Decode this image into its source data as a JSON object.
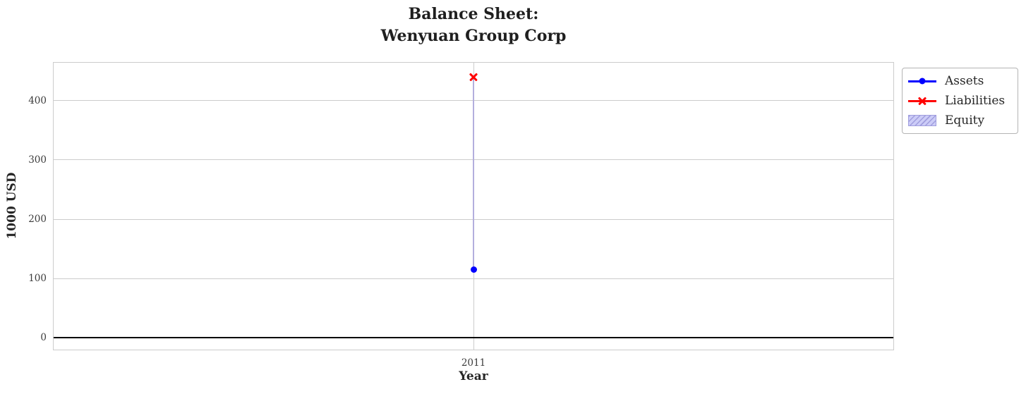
{
  "figure": {
    "title_line1": "Balance Sheet:",
    "title_line2": "Wenyuan Group Corp"
  },
  "chart_data": {
    "type": "line",
    "title": "Balance Sheet:\nWenyuan Group Corp",
    "xlabel": "Year",
    "ylabel": "1000 USD",
    "x_categories": [
      "2011"
    ],
    "series": [
      {
        "name": "Assets",
        "values": [
          115
        ],
        "color": "#0000ff",
        "marker": "circle"
      },
      {
        "name": "Liabilities",
        "values": [
          440
        ],
        "color": "#ff0000",
        "marker": "x"
      }
    ],
    "band": {
      "name": "Equity",
      "between": [
        "Assets",
        "Liabilities"
      ],
      "span_at_2011": [
        115,
        440
      ],
      "fill_color": "#ccccf7",
      "edge_color": "#a09ede",
      "line_color": "#b3aedd",
      "hatch": "///"
    },
    "yticks": [
      0,
      100,
      200,
      300,
      400
    ],
    "ylim": [
      -20,
      464
    ],
    "grid": true,
    "grid_color": "#cccccc",
    "zero_line_color": "#000000",
    "legend_position": "upper-right-outside"
  }
}
